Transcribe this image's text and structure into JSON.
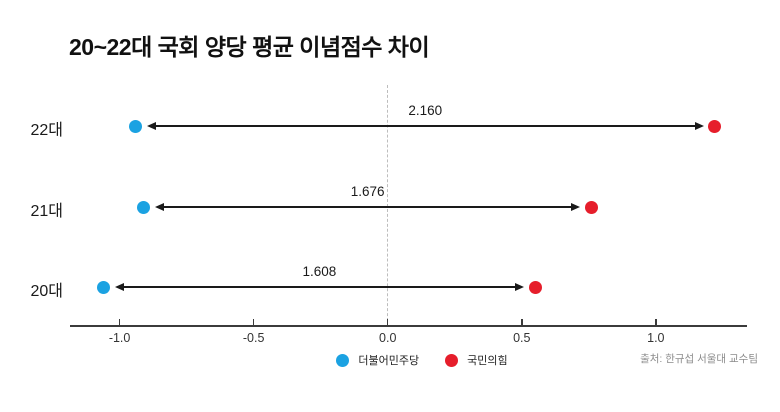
{
  "title": "20~22대 국회 양당 평균 이념점수 차이",
  "source": "출처: 한규섭 서울대 교수팀",
  "legend": {
    "items": [
      {
        "label": "더불어민주당",
        "color": "#1ba2e2"
      },
      {
        "label": "국민의힘",
        "color": "#e61e2b"
      }
    ]
  },
  "colors": {
    "democratic_blue": "#1ba2e2",
    "ppp_red": "#e61e2b",
    "axis": "#3b3b3b",
    "arrow": "#1a1a1a",
    "dashed_line": "#bdbdbd",
    "text": "#1a1a1a",
    "source_text": "#8c8c8c"
  },
  "chart_data": {
    "type": "dumbbell",
    "title": "20~22대 국회 양당 평균 이념점수 차이",
    "categories": [
      "22대",
      "21대",
      "20대"
    ],
    "series": [
      {
        "name": "더불어민주당",
        "color": "#1ba2e2",
        "values": [
          -0.94,
          -0.91,
          -1.06
        ]
      },
      {
        "name": "국민의힘",
        "color": "#e61e2b",
        "values": [
          1.22,
          0.76,
          0.55
        ]
      }
    ],
    "gap_labels": [
      "2.160",
      "1.676",
      "1.608"
    ],
    "x_tick_values": [
      -1.0,
      -0.5,
      0.0,
      0.5,
      1.0
    ],
    "x_tick_labels": [
      "-1.0",
      "-0.5",
      "0.0",
      "0.5",
      "1.0"
    ],
    "xlim": [
      -1.185,
      1.34
    ],
    "zero_line": 0,
    "grid": false,
    "legend_position": "bottom"
  }
}
